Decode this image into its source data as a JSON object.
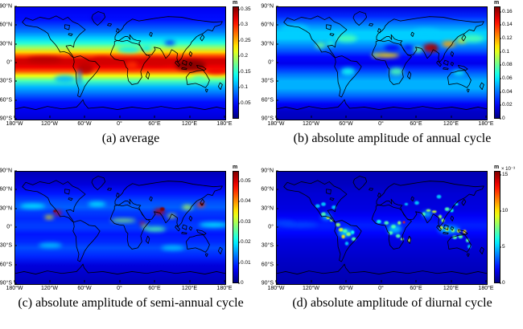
{
  "figure": {
    "layout": "2x2 global map subplots",
    "colormap": "jet",
    "projection": "equirectangular (lat/lon grid)"
  },
  "chart_data": [
    {
      "id": "a",
      "type": "heatmap",
      "caption": "(a) average",
      "unit": "m",
      "multiplier": "",
      "colormap": "jet",
      "description": "Global map of average value; high (red ~0.3-0.35 m) along tropics/ITCZ, low (dark blue <0.05 m) at poles and over high terrain (Tibet, Andes, Greenland).",
      "xtick_labels": [
        "180°W",
        "120°W",
        "60°W",
        "0°",
        "60°E",
        "120°E",
        "180°E"
      ],
      "ytick_labels": [
        "90°N",
        "60°N",
        "30°N",
        "0°",
        "30°S",
        "60°S",
        "90°S"
      ],
      "xlim": [
        -180,
        180
      ],
      "ylim": [
        -90,
        90
      ],
      "vmin": 0,
      "vmax": 0.36,
      "cb_tick_values": [
        0.05,
        0.1,
        0.15,
        0.2,
        0.25,
        0.3,
        0.35
      ],
      "cb_tick_labels": [
        "0.05",
        "0.1",
        "0.15",
        "0.2",
        "0.25",
        "0.3",
        "0.35"
      ],
      "zonal_profile": [
        [
          90,
          0.04
        ],
        [
          70,
          0.05
        ],
        [
          60,
          0.07
        ],
        [
          50,
          0.09
        ],
        [
          40,
          0.12
        ],
        [
          32,
          0.15
        ],
        [
          25,
          0.19
        ],
        [
          18,
          0.24
        ],
        [
          12,
          0.29
        ],
        [
          6,
          0.33
        ],
        [
          0,
          0.33
        ],
        [
          -6,
          0.32
        ],
        [
          -12,
          0.29
        ],
        [
          -20,
          0.22
        ],
        [
          -28,
          0.16
        ],
        [
          -38,
          0.11
        ],
        [
          -50,
          0.08
        ],
        [
          -62,
          0.05
        ],
        [
          -75,
          0.04
        ],
        [
          -90,
          0.03
        ]
      ],
      "hotspots": [
        [
          -40,
          72,
          10,
          6,
          0.035,
          0
        ],
        [
          85,
          33,
          9,
          4,
          0.06,
          0
        ],
        [
          15,
          22,
          20,
          5,
          0.13,
          0
        ],
        [
          45,
          24,
          9,
          5,
          0.13,
          0
        ],
        [
          -60,
          -8,
          14,
          9,
          0.34,
          0
        ],
        [
          20,
          -3,
          10,
          6,
          0.3,
          0
        ],
        [
          120,
          -3,
          26,
          9,
          0.36,
          0
        ],
        [
          165,
          -12,
          20,
          6,
          0.32,
          0
        ],
        [
          -130,
          6,
          30,
          5,
          0.34,
          0
        ],
        [
          -30,
          5,
          18,
          5,
          0.33,
          0
        ],
        [
          60,
          3,
          20,
          6,
          0.33,
          0
        ],
        [
          -70,
          -22,
          3,
          12,
          0.08,
          0
        ],
        [
          -95,
          -25,
          18,
          6,
          0.11,
          0
        ],
        [
          135,
          -25,
          12,
          5,
          0.16,
          0
        ]
      ]
    },
    {
      "id": "b",
      "type": "heatmap",
      "caption": "(b) absolute amplitude of annual cycle",
      "unit": "m",
      "multiplier": "",
      "colormap": "jet",
      "description": "Annual-cycle amplitude; maxima (red ~0.16 m) over India/Bay of Bengal, secondary maxima over East Asia and the Sahel; cyan mid-latitude bands; dark blue equatorial oceans and deserts.",
      "xtick_labels": [
        "180°W",
        "120°W",
        "60°W",
        "0°",
        "60°E",
        "120°E",
        "180°E"
      ],
      "ytick_labels": [
        "90°N",
        "60°N",
        "30°N",
        "0°",
        "30°S",
        "60°S",
        "90°S"
      ],
      "xlim": [
        -180,
        180
      ],
      "ylim": [
        -90,
        90
      ],
      "vmin": 0,
      "vmax": 0.168,
      "cb_tick_values": [
        0,
        0.02,
        0.04,
        0.06,
        0.08,
        0.1,
        0.12,
        0.14,
        0.16
      ],
      "cb_tick_labels": [
        "0",
        "0.02",
        "0.04",
        "0.06",
        "0.08",
        "0.1",
        "0.12",
        "0.14",
        "0.16"
      ],
      "zonal_profile": [
        [
          90,
          0.015
        ],
        [
          75,
          0.028
        ],
        [
          60,
          0.045
        ],
        [
          50,
          0.055
        ],
        [
          40,
          0.055
        ],
        [
          30,
          0.045
        ],
        [
          20,
          0.035
        ],
        [
          10,
          0.022
        ],
        [
          0,
          0.018
        ],
        [
          -8,
          0.028
        ],
        [
          -18,
          0.04
        ],
        [
          -28,
          0.05
        ],
        [
          -40,
          0.05
        ],
        [
          -52,
          0.038
        ],
        [
          -65,
          0.02
        ],
        [
          -78,
          0.012
        ],
        [
          -90,
          0.01
        ]
      ],
      "hotspots": [
        [
          83,
          25,
          12,
          7,
          0.16,
          0
        ],
        [
          90,
          24,
          6,
          4,
          0.165,
          0
        ],
        [
          115,
          31,
          12,
          5,
          0.12,
          0
        ],
        [
          137,
          36,
          8,
          4,
          0.11,
          0
        ],
        [
          8,
          13,
          22,
          4,
          0.11,
          0
        ],
        [
          -12,
          13,
          6,
          3,
          0.09,
          0
        ],
        [
          -105,
          29,
          9,
          5,
          0.08,
          0
        ],
        [
          -88,
          32,
          8,
          4,
          0.07,
          0
        ],
        [
          25,
          -13,
          12,
          6,
          0.075,
          0
        ],
        [
          -58,
          -13,
          12,
          6,
          0.065,
          0
        ],
        [
          132,
          -15,
          11,
          4,
          0.065,
          0
        ],
        [
          62,
          22,
          8,
          5,
          0.08,
          0
        ],
        [
          155,
          40,
          20,
          6,
          0.075,
          0
        ],
        [
          -60,
          40,
          18,
          6,
          0.075,
          0
        ],
        [
          18,
          25,
          14,
          5,
          0.02,
          0
        ],
        [
          45,
          25,
          8,
          4,
          0.02,
          0
        ],
        [
          75,
          48,
          25,
          8,
          0.055,
          0
        ],
        [
          -150,
          55,
          25,
          8,
          0.055,
          0
        ]
      ]
    },
    {
      "id": "c",
      "type": "heatmap",
      "caption": "(c) absolute amplitude of semi-annual cycle",
      "unit": "m",
      "multiplier": "",
      "colormap": "jet",
      "description": "Semi-annual-cycle amplitude; maxima (red ~0.05 m) over Pakistan/NW India and off western Mexico, yellow over East Asia/Japan, Ethiopia and the Sahel; faint cyan streaks over mid-latitude oceans.",
      "xtick_labels": [
        "180°W",
        "120°W",
        "60°W",
        "0°",
        "60°E",
        "120°E",
        "180°E"
      ],
      "ytick_labels": [
        "90°N",
        "60°N",
        "30°N",
        "0°",
        "30°S",
        "60°S",
        "90°S"
      ],
      "xlim": [
        -180,
        180
      ],
      "ylim": [
        -90,
        90
      ],
      "vmin": 0,
      "vmax": 0.055,
      "cb_tick_values": [
        0,
        0.01,
        0.02,
        0.03,
        0.04,
        0.05
      ],
      "cb_tick_labels": [
        "0",
        "0.01",
        "0.02",
        "0.03",
        "0.04",
        "0.05"
      ],
      "zonal_profile": [
        [
          90,
          0.003
        ],
        [
          70,
          0.005
        ],
        [
          55,
          0.008
        ],
        [
          42,
          0.011
        ],
        [
          33,
          0.012
        ],
        [
          25,
          0.01
        ],
        [
          15,
          0.009
        ],
        [
          5,
          0.01
        ],
        [
          0,
          0.01
        ],
        [
          -10,
          0.008
        ],
        [
          -22,
          0.009
        ],
        [
          -32,
          0.011
        ],
        [
          -45,
          0.009
        ],
        [
          -60,
          0.005
        ],
        [
          -75,
          0.004
        ],
        [
          -90,
          0.003
        ]
      ],
      "hotspots": [
        [
          67,
          26,
          9,
          5,
          0.052,
          0
        ],
        [
          72,
          30,
          4,
          3,
          0.055,
          1
        ],
        [
          88,
          19,
          8,
          3,
          0.032,
          0
        ],
        [
          115,
          33,
          9,
          4,
          0.03,
          0
        ],
        [
          138,
          37,
          7,
          4,
          0.045,
          0
        ],
        [
          140,
          38,
          3,
          2,
          0.055,
          1
        ],
        [
          -107,
          24,
          6,
          4,
          0.05,
          0
        ],
        [
          -112,
          27,
          3,
          2,
          0.055,
          1
        ],
        [
          -122,
          17,
          8,
          3,
          0.035,
          0
        ],
        [
          5,
          12,
          22,
          3,
          0.028,
          0
        ],
        [
          38,
          7,
          4,
          3,
          0.05,
          0
        ],
        [
          42,
          2,
          5,
          3,
          0.03,
          0
        ],
        [
          60,
          -2,
          18,
          4,
          0.025,
          0
        ],
        [
          -150,
          35,
          22,
          4,
          0.02,
          0
        ],
        [
          -40,
          38,
          15,
          4,
          0.02,
          0
        ],
        [
          -120,
          -28,
          20,
          4,
          0.018,
          0
        ],
        [
          90,
          -32,
          20,
          4,
          0.018,
          0
        ],
        [
          160,
          5,
          25,
          4,
          0.02,
          0
        ]
      ]
    },
    {
      "id": "d",
      "type": "heatmap",
      "caption": "(d) absolute amplitude of diurnal cycle",
      "unit": "m",
      "multiplier": "× 10⁻³",
      "colormap": "jet",
      "description": "Diurnal-cycle amplitude (×10⁻³ m); mostly dark blue oceans with speckled cyan/green maxima over tropical land (South America, Africa, South/Southeast Asia, Maritime Continent, northern Australia) and small red spots (e.g. Ethiopia).",
      "xtick_labels": [
        "180°W",
        "120°W",
        "60°W",
        "0°",
        "60°E",
        "120°E",
        "180°E"
      ],
      "ytick_labels": [
        "90°N",
        "60°N",
        "30°N",
        "0°",
        "30°S",
        "60°S",
        "90°S"
      ],
      "xlim": [
        -180,
        180
      ],
      "ylim": [
        -90,
        90
      ],
      "vmin": 0,
      "vmax": 15.5,
      "cb_tick_values": [
        0,
        5,
        10,
        15
      ],
      "cb_tick_labels": [
        "0",
        "5",
        "10",
        "15"
      ],
      "zonal_profile": [
        [
          90,
          0.8
        ],
        [
          70,
          1.0
        ],
        [
          55,
          1.3
        ],
        [
          40,
          1.4
        ],
        [
          30,
          1.5
        ],
        [
          20,
          1.8
        ],
        [
          10,
          2.2
        ],
        [
          5,
          2.4
        ],
        [
          0,
          2.3
        ],
        [
          -8,
          2.0
        ],
        [
          -20,
          1.5
        ],
        [
          -35,
          1.3
        ],
        [
          -50,
          1.1
        ],
        [
          -70,
          0.9
        ],
        [
          -90,
          0.7
        ]
      ],
      "hotspots": [
        [
          -62,
          -8,
          12,
          7,
          5,
          0
        ],
        [
          22,
          -2,
          12,
          7,
          5,
          0
        ],
        [
          115,
          -3,
          18,
          6,
          5,
          0
        ],
        [
          78,
          22,
          8,
          5,
          5,
          0
        ],
        [
          -95,
          18,
          8,
          5,
          5,
          0
        ],
        [
          -140,
          5,
          30,
          4,
          3,
          0
        ],
        [
          -170,
          8,
          20,
          4,
          3,
          0
        ],
        [
          -100,
          22,
          4,
          3,
          7,
          1
        ],
        [
          -92,
          16,
          3,
          2,
          9,
          1
        ],
        [
          -86,
          12,
          3,
          2,
          8,
          1
        ],
        [
          -75,
          5,
          4,
          3,
          8,
          1
        ],
        [
          -70,
          -3,
          4,
          3,
          9,
          1
        ],
        [
          -63,
          -5,
          4,
          3,
          7,
          1
        ],
        [
          -57,
          -10,
          4,
          3,
          8,
          1
        ],
        [
          -66,
          -14,
          3,
          3,
          10,
          1
        ],
        [
          -50,
          -7,
          3,
          3,
          6,
          1
        ],
        [
          -48,
          -18,
          4,
          3,
          7,
          1
        ],
        [
          -60,
          -25,
          3,
          3,
          5,
          1
        ],
        [
          -5,
          10,
          4,
          3,
          6,
          1
        ],
        [
          8,
          8,
          4,
          3,
          7,
          1
        ],
        [
          20,
          2,
          4,
          3,
          7,
          1
        ],
        [
          30,
          8,
          3,
          3,
          8,
          1
        ],
        [
          38,
          9,
          2,
          2,
          13,
          1
        ],
        [
          15,
          -8,
          4,
          3,
          7,
          1
        ],
        [
          28,
          -13,
          4,
          3,
          7,
          1
        ],
        [
          35,
          -18,
          3,
          2,
          8,
          1
        ],
        [
          47,
          -20,
          2,
          3,
          9,
          1
        ],
        [
          72,
          22,
          3,
          3,
          7,
          1
        ],
        [
          80,
          28,
          4,
          2,
          8,
          1
        ],
        [
          90,
          26,
          4,
          2,
          9,
          1
        ],
        [
          100,
          18,
          3,
          3,
          8,
          1
        ],
        [
          105,
          12,
          3,
          3,
          8,
          1
        ],
        [
          112,
          30,
          4,
          3,
          7,
          1
        ],
        [
          120,
          28,
          3,
          3,
          6,
          1
        ],
        [
          128,
          38,
          3,
          2,
          6,
          1
        ],
        [
          98,
          50,
          4,
          3,
          5,
          1
        ],
        [
          60,
          40,
          4,
          3,
          5,
          1
        ],
        [
          42,
          38,
          3,
          2,
          5,
          1
        ],
        [
          102,
          0,
          3,
          3,
          9,
          1
        ],
        [
          112,
          -2,
          3,
          3,
          9,
          1
        ],
        [
          122,
          -4,
          3,
          3,
          8,
          1
        ],
        [
          132,
          -5,
          3,
          3,
          9,
          1
        ],
        [
          142,
          -6,
          3,
          3,
          10,
          1
        ],
        [
          125,
          -15,
          4,
          3,
          7,
          1
        ],
        [
          135,
          -14,
          4,
          3,
          7,
          1
        ],
        [
          147,
          -20,
          3,
          3,
          7,
          1
        ],
        [
          150,
          -30,
          3,
          3,
          5,
          1
        ],
        [
          -110,
          35,
          4,
          3,
          5,
          1
        ],
        [
          -100,
          38,
          4,
          3,
          5,
          1
        ],
        [
          -82,
          33,
          4,
          3,
          5,
          1
        ]
      ]
    }
  ]
}
